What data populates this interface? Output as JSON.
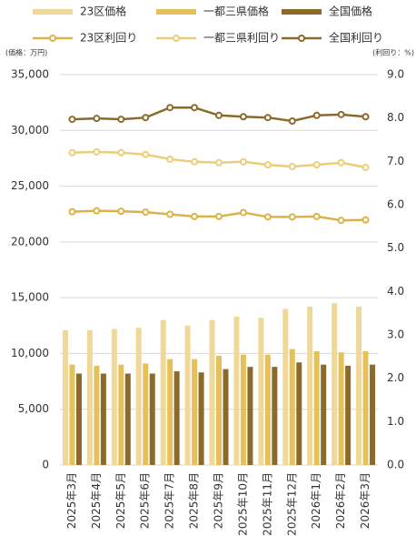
{
  "chart_data": {
    "type": "bar",
    "y_label": "(価格：万円)",
    "y2_label": "(利回り：%)",
    "categories": [
      "2025年3月",
      "2025年4月",
      "2025年5月",
      "2025年6月",
      "2025年7月",
      "2025年8月",
      "2025年9月",
      "2025年10月",
      "2025年11月",
      "2025年12月",
      "2026年1月",
      "2026年2月",
      "2026年3月"
    ],
    "series": [
      {
        "name": "23区価格",
        "type": "bar",
        "color": "#f0d998",
        "values": [
          12100,
          12100,
          12200,
          12300,
          13000,
          12500,
          13000,
          13300,
          13200,
          14000,
          14200,
          14500,
          14200
        ]
      },
      {
        "name": "一都三県価格",
        "type": "bar",
        "color": "#e6c15a",
        "values": [
          9000,
          8900,
          9000,
          9100,
          9500,
          9500,
          9800,
          9900,
          9900,
          10400,
          10200,
          10100,
          10200
        ]
      },
      {
        "name": "全国価格",
        "type": "bar",
        "color": "#8b6a2b",
        "values": [
          8200,
          8200,
          8200,
          8200,
          8400,
          8300,
          8600,
          8800,
          8800,
          9200,
          9000,
          8900,
          9000
        ]
      },
      {
        "name": "23区利回り",
        "type": "line",
        "axis": "y2",
        "color": "#dcb24a",
        "values": [
          5.84,
          5.86,
          5.85,
          5.83,
          5.78,
          5.73,
          5.73,
          5.82,
          5.72,
          5.72,
          5.73,
          5.64,
          5.65
        ]
      },
      {
        "name": "一都三県利回り",
        "type": "line",
        "axis": "y2",
        "color": "#ebcd7a",
        "values": [
          7.2,
          7.22,
          7.2,
          7.16,
          7.05,
          6.99,
          6.97,
          6.99,
          6.92,
          6.88,
          6.92,
          6.97,
          6.86
        ]
      },
      {
        "name": "全国利回り",
        "type": "line",
        "axis": "y2",
        "color": "#8b6a2b",
        "values": [
          7.97,
          7.99,
          7.97,
          8.01,
          8.24,
          8.24,
          8.06,
          8.03,
          8.01,
          7.93,
          8.06,
          8.08,
          8.03
        ]
      }
    ],
    "ylim": [
      0,
      35000
    ],
    "yticks": [
      0,
      {
        "value": 5000,
        "label": "5,000"
      },
      {
        "value": 10000,
        "label": "10,000"
      },
      {
        "value": 15000,
        "label": "15,000"
      },
      {
        "value": 20000,
        "label": "20,000"
      },
      {
        "value": 25000,
        "label": "25,000"
      },
      {
        "value": 30000,
        "label": "30,000"
      },
      {
        "value": 35000,
        "label": "35,000"
      }
    ],
    "y2lim": [
      0,
      9
    ],
    "y2ticks": [
      {
        "value": 0,
        "label": "0.0"
      },
      {
        "value": 1,
        "label": "1.0"
      },
      {
        "value": 2,
        "label": "2.0"
      },
      {
        "value": 3,
        "label": "3.0"
      },
      {
        "value": 4,
        "label": "4.0"
      },
      {
        "value": 5,
        "label": "5.0"
      },
      {
        "value": 6,
        "label": "6.0"
      },
      {
        "value": 7,
        "label": "7.0"
      },
      {
        "value": 8,
        "label": "8.0"
      },
      {
        "value": 9,
        "label": "9.0"
      }
    ],
    "grid": true
  }
}
